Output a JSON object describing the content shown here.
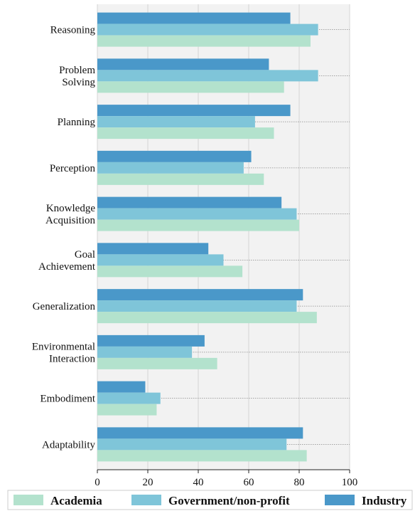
{
  "chart_data": {
    "type": "bar",
    "orientation": "horizontal",
    "categories": [
      [
        "Reasoning"
      ],
      [
        "Problem",
        "Solving"
      ],
      [
        "Planning"
      ],
      [
        "Perception"
      ],
      [
        "Knowledge",
        "Acquisition"
      ],
      [
        "Goal",
        "Achievement"
      ],
      [
        "Generalization"
      ],
      [
        "Environmental",
        "Interaction"
      ],
      [
        "Embodiment"
      ],
      [
        "Adaptability"
      ]
    ],
    "series": [
      {
        "name": "Academia",
        "color": "#b3e2cd",
        "values": [
          84.5,
          74,
          70,
          66,
          80,
          57.5,
          87,
          47.5,
          23.5,
          83
        ]
      },
      {
        "name": "Government/non-profit",
        "color": "#7fc5d9",
        "values": [
          87.5,
          87.5,
          62.5,
          58,
          79,
          50,
          79,
          37.5,
          25,
          75
        ]
      },
      {
        "name": "Industry",
        "color": "#4a98c9",
        "values": [
          76.5,
          68,
          76.5,
          61,
          73,
          44,
          81.5,
          42.5,
          19,
          81.5
        ]
      }
    ],
    "xlim": [
      0,
      100
    ],
    "xticks": [
      "0",
      "20",
      "40",
      "60",
      "80",
      "100"
    ],
    "xlabel": "",
    "ylabel": "",
    "title": "",
    "grid": true,
    "legend_position": "bottom"
  }
}
